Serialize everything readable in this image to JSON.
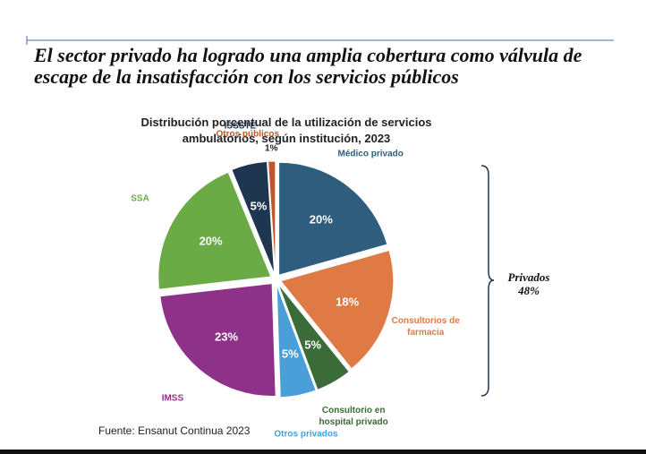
{
  "slide": {
    "title": "El sector privado ha logrado una amplia cobertura como válvula de escape de la insatisfacción con los servicios públicos",
    "source": "Fuente: Ensanut Continua 2023"
  },
  "chart_data": {
    "type": "pie",
    "title": "Distribución porcentual de la utilización de servicios ambulatorios, según institución, 2023",
    "categories": [
      "Médico privado",
      "Consultorios de farmacia",
      "Consultorio en hospital privado",
      "Otros privados",
      "IMSS",
      "SSA",
      "ISSSTE",
      "Otros públicos"
    ],
    "values": [
      20,
      18,
      5,
      5,
      23,
      20,
      5,
      1
    ],
    "value_labels": [
      "20%",
      "18%",
      "5%",
      "5%",
      "23%",
      "20%",
      "5%",
      "1%"
    ],
    "colors": [
      "#2f5d7e",
      "#e07a45",
      "#3b6b36",
      "#4a9fd9",
      "#8e3189",
      "#6aab46",
      "#1f3651",
      "#c0562a"
    ],
    "annotation": [
      "Privados",
      "48%"
    ]
  }
}
